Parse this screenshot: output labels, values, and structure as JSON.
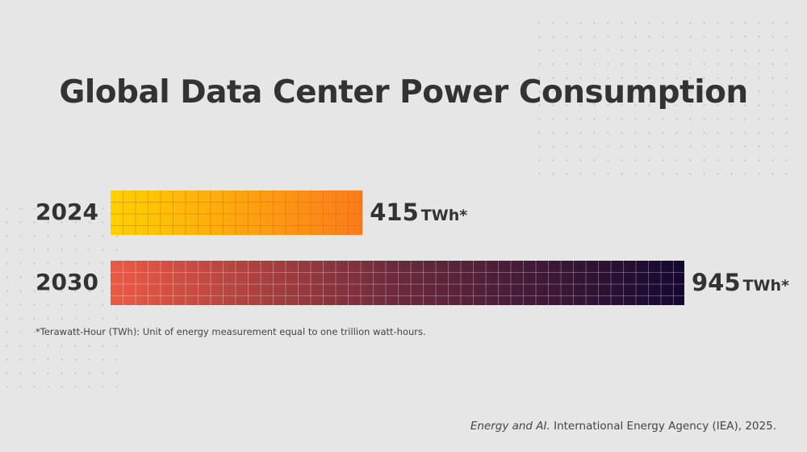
{
  "chart_data": {
    "type": "bar",
    "orientation": "horizontal",
    "title": "Global Data Center Power Consumption",
    "categories": [
      "2024",
      "2030"
    ],
    "values": [
      415,
      945
    ],
    "value_labels": [
      "415",
      "945"
    ],
    "unit": "TWh*",
    "colors": {
      "2024": [
        "#fcd200",
        "#fc7a1e"
      ],
      "2030": [
        "#ec5a44",
        "#6b2a3c",
        "#140830"
      ]
    },
    "grid": false,
    "footnote": "*Terawatt-Hour (TWh): Unit of energy measurement equal to one trillion watt-hours.",
    "source_italic": "Energy and AI.",
    "source_rest": " International Energy Agency (IEA), 2025."
  }
}
